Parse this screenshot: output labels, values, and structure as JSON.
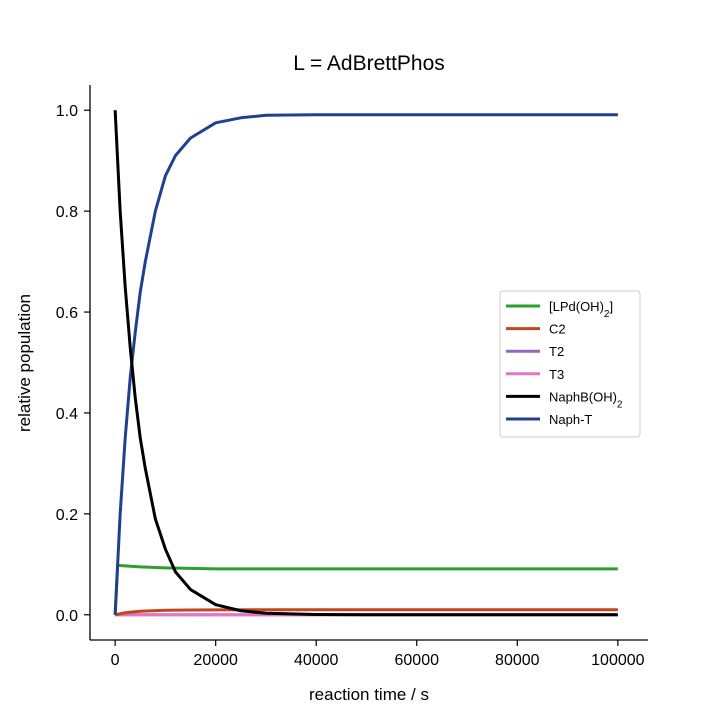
{
  "chart_data": {
    "type": "line",
    "title": "L = AdBrettPhos",
    "xlabel": "reaction time / s",
    "ylabel": "relative population",
    "xlim": [
      -5000,
      106000
    ],
    "ylim": [
      -0.05,
      1.05
    ],
    "xticks": [
      0,
      20000,
      40000,
      60000,
      80000,
      100000
    ],
    "xtick_labels": [
      "0",
      "20000",
      "40000",
      "60000",
      "80000",
      "100000"
    ],
    "yticks": [
      0.0,
      0.2,
      0.4,
      0.6,
      0.8,
      1.0
    ],
    "ytick_labels": [
      "0.0",
      "0.2",
      "0.4",
      "0.6",
      "0.8",
      "1.0"
    ],
    "grid": false,
    "legend_position": "center-right",
    "series": [
      {
        "name": "[LPd(OH)2]",
        "legend_html": "[LPd(OH)<tspan baseline-shift=\"sub\" font-size=\"10\">2</tspan>]",
        "color": "#2ca02c",
        "x": [
          0,
          500,
          2000,
          5000,
          10000,
          15000,
          20000,
          30000,
          50000,
          100000
        ],
        "y": [
          0.0,
          0.098,
          0.097,
          0.095,
          0.093,
          0.092,
          0.091,
          0.091,
          0.091,
          0.091
        ]
      },
      {
        "name": "C2",
        "color": "#c0461e",
        "x": [
          0,
          2000,
          5000,
          10000,
          15000,
          20000,
          30000,
          50000,
          100000
        ],
        "y": [
          0.0,
          0.004,
          0.007,
          0.009,
          0.0095,
          0.0098,
          0.0099,
          0.0099,
          0.0099
        ]
      },
      {
        "name": "T2",
        "color": "#9467bd",
        "x": [
          0,
          100000
        ],
        "y": [
          0.0,
          0.0
        ]
      },
      {
        "name": "T3",
        "color": "#e377c2",
        "x": [
          0,
          100000
        ],
        "y": [
          0.0,
          0.0
        ]
      },
      {
        "name": "NaphB(OH)2",
        "legend_html": "NaphB(OH)<tspan baseline-shift=\"sub\" font-size=\"10\">2</tspan>",
        "color": "#000000",
        "x": [
          0,
          1000,
          2000,
          3000,
          4000,
          5000,
          6000,
          8000,
          10000,
          12000,
          15000,
          20000,
          25000,
          30000,
          40000,
          50000,
          100000
        ],
        "y": [
          1.0,
          0.8,
          0.65,
          0.53,
          0.43,
          0.35,
          0.29,
          0.19,
          0.13,
          0.085,
          0.05,
          0.02,
          0.008,
          0.003,
          0.0005,
          0.0,
          0.0
        ]
      },
      {
        "name": "Naph-T",
        "color": "#1f3f8f",
        "x": [
          0,
          1000,
          2000,
          3000,
          4000,
          5000,
          6000,
          8000,
          10000,
          12000,
          15000,
          20000,
          25000,
          30000,
          40000,
          50000,
          100000
        ],
        "y": [
          0.0,
          0.2,
          0.35,
          0.47,
          0.56,
          0.64,
          0.7,
          0.8,
          0.87,
          0.91,
          0.945,
          0.975,
          0.985,
          0.99,
          0.991,
          0.991,
          0.991
        ]
      }
    ]
  }
}
